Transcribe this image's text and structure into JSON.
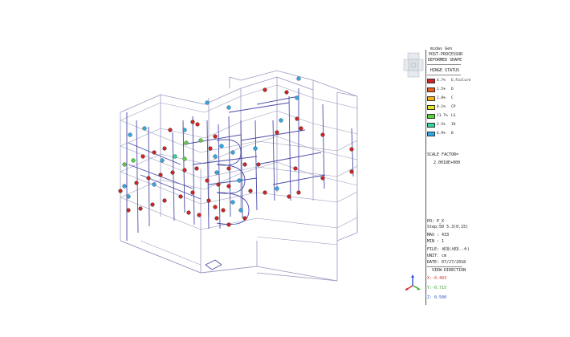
{
  "header": {
    "program": "midas Gen",
    "mode": "POST-PROCESSOR",
    "view": "DEFORMED SHAPE"
  },
  "legend": {
    "title": "HINGE STATUS",
    "items": [
      {
        "pct": "4.7%",
        "label": "E,Failure",
        "color": "#d32222"
      },
      {
        "pct": "1.5%",
        "label": "D",
        "color": "#ee5a1a"
      },
      {
        "pct": "1.0%",
        "label": "C",
        "color": "#f3b21c"
      },
      {
        "pct": "0.1%",
        "label": "CP",
        "color": "#e3e629"
      },
      {
        "pct": "11.7%",
        "label": "LS",
        "color": "#55d43a"
      },
      {
        "pct": "2.5%",
        "label": "IO",
        "color": "#2fd6a4"
      },
      {
        "pct": "6.9%",
        "label": "B",
        "color": "#2fa9e8"
      }
    ]
  },
  "scale": {
    "label": "SCALE FACTOR=",
    "value": "2.0018E+000"
  },
  "info": {
    "po": "PO: P_X",
    "step": "Step:50 5.3(0.15)",
    "max": "MAX : 433",
    "min": "MIN : 1",
    "file": "FILE: 세대(세대.-수)",
    "unit": "UNIT: cm",
    "date": "DATE: 07/27/2018"
  },
  "view_direction": {
    "title": "VIEW-DIRECTION",
    "x": "X:-0.483",
    "y": "Y:-0.715",
    "z": "Z: 0.500"
  },
  "colors": {
    "frame": "#4a4aa8",
    "frame_light": "#9a9ac0",
    "background": "#ffffff",
    "axis_x": "#e03030",
    "axis_y": "#30b030",
    "axis_z": "#3050e0"
  },
  "icons": [
    "view-cube-icon",
    "axis-triad-icon"
  ]
}
